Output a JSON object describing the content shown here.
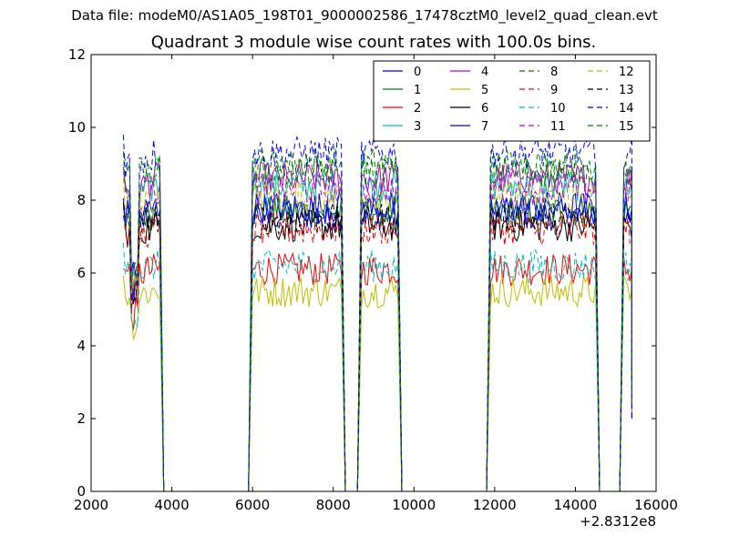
{
  "suptitle": "Data file: modeM0/AS1A05_198T01_9000002586_17478cztM0_level2_quad_clean.evt",
  "chart_data": {
    "type": "line",
    "title": "Quadrant 3 module wise count rates with 100.0s bins.",
    "xlabel": "",
    "ylabel": "",
    "xlim": [
      2000,
      16000
    ],
    "ylim": [
      0,
      12
    ],
    "x_offset_label": "+2.8312e8",
    "x_ticks": [
      2000,
      4000,
      6000,
      8000,
      10000,
      12000,
      14000,
      16000
    ],
    "x_tick_labels": [
      "2000",
      "4000",
      "6000",
      "8000",
      "10000",
      "12000",
      "14000",
      "16000"
    ],
    "y_ticks": [
      0,
      2,
      4,
      6,
      8,
      10,
      12
    ],
    "y_tick_labels": [
      "0",
      "2",
      "4",
      "6",
      "8",
      "10",
      "12"
    ],
    "grid": false,
    "legend": {
      "placement": "top-right",
      "columns": 4
    },
    "segments": [
      {
        "start": 2800,
        "end": 3700,
        "profile": [
          -0.05,
          -0.6,
          -0.05,
          -0.02,
          0.0
        ]
      },
      {
        "start": 6000,
        "end": 8200
      },
      {
        "start": 8700,
        "end": 9600
      },
      {
        "start": 11900,
        "end": 14500
      },
      {
        "start": 15200,
        "end": 15400
      }
    ],
    "series": [
      {
        "name": "0",
        "color": "#0000ff",
        "dash": "solid",
        "level": 7.6
      },
      {
        "name": "1",
        "color": "#008000",
        "dash": "solid",
        "level": 7.7
      },
      {
        "name": "2",
        "color": "#ff0000",
        "dash": "solid",
        "level": 6.1
      },
      {
        "name": "3",
        "color": "#00bfbf",
        "dash": "solid",
        "level": 8.4
      },
      {
        "name": "4",
        "color": "#bf00bf",
        "dash": "solid",
        "level": 8.6
      },
      {
        "name": "5",
        "color": "#bfbf00",
        "dash": "solid",
        "level": 5.5
      },
      {
        "name": "6",
        "color": "#000000",
        "dash": "solid",
        "level": 7.3
      },
      {
        "name": "7",
        "color": "#0000ff",
        "dash": "solid",
        "level": 7.8
      },
      {
        "name": "8",
        "color": "#008000",
        "dash": "dashed",
        "level": 9.0
      },
      {
        "name": "9",
        "color": "#ff0000",
        "dash": "dashed",
        "level": 7.2
      },
      {
        "name": "10",
        "color": "#00bfbf",
        "dash": "dashed",
        "level": 6.2
      },
      {
        "name": "11",
        "color": "#bf00bf",
        "dash": "dashed",
        "level": 8.3
      },
      {
        "name": "12",
        "color": "#bfbf00",
        "dash": "dashed",
        "level": 8.1
      },
      {
        "name": "13",
        "color": "#000000",
        "dash": "dashed",
        "level": 7.5
      },
      {
        "name": "14",
        "color": "#0000ff",
        "dash": "dashed",
        "level": 9.3
      },
      {
        "name": "15",
        "color": "#008000",
        "dash": "dashed",
        "level": 8.8
      }
    ]
  }
}
